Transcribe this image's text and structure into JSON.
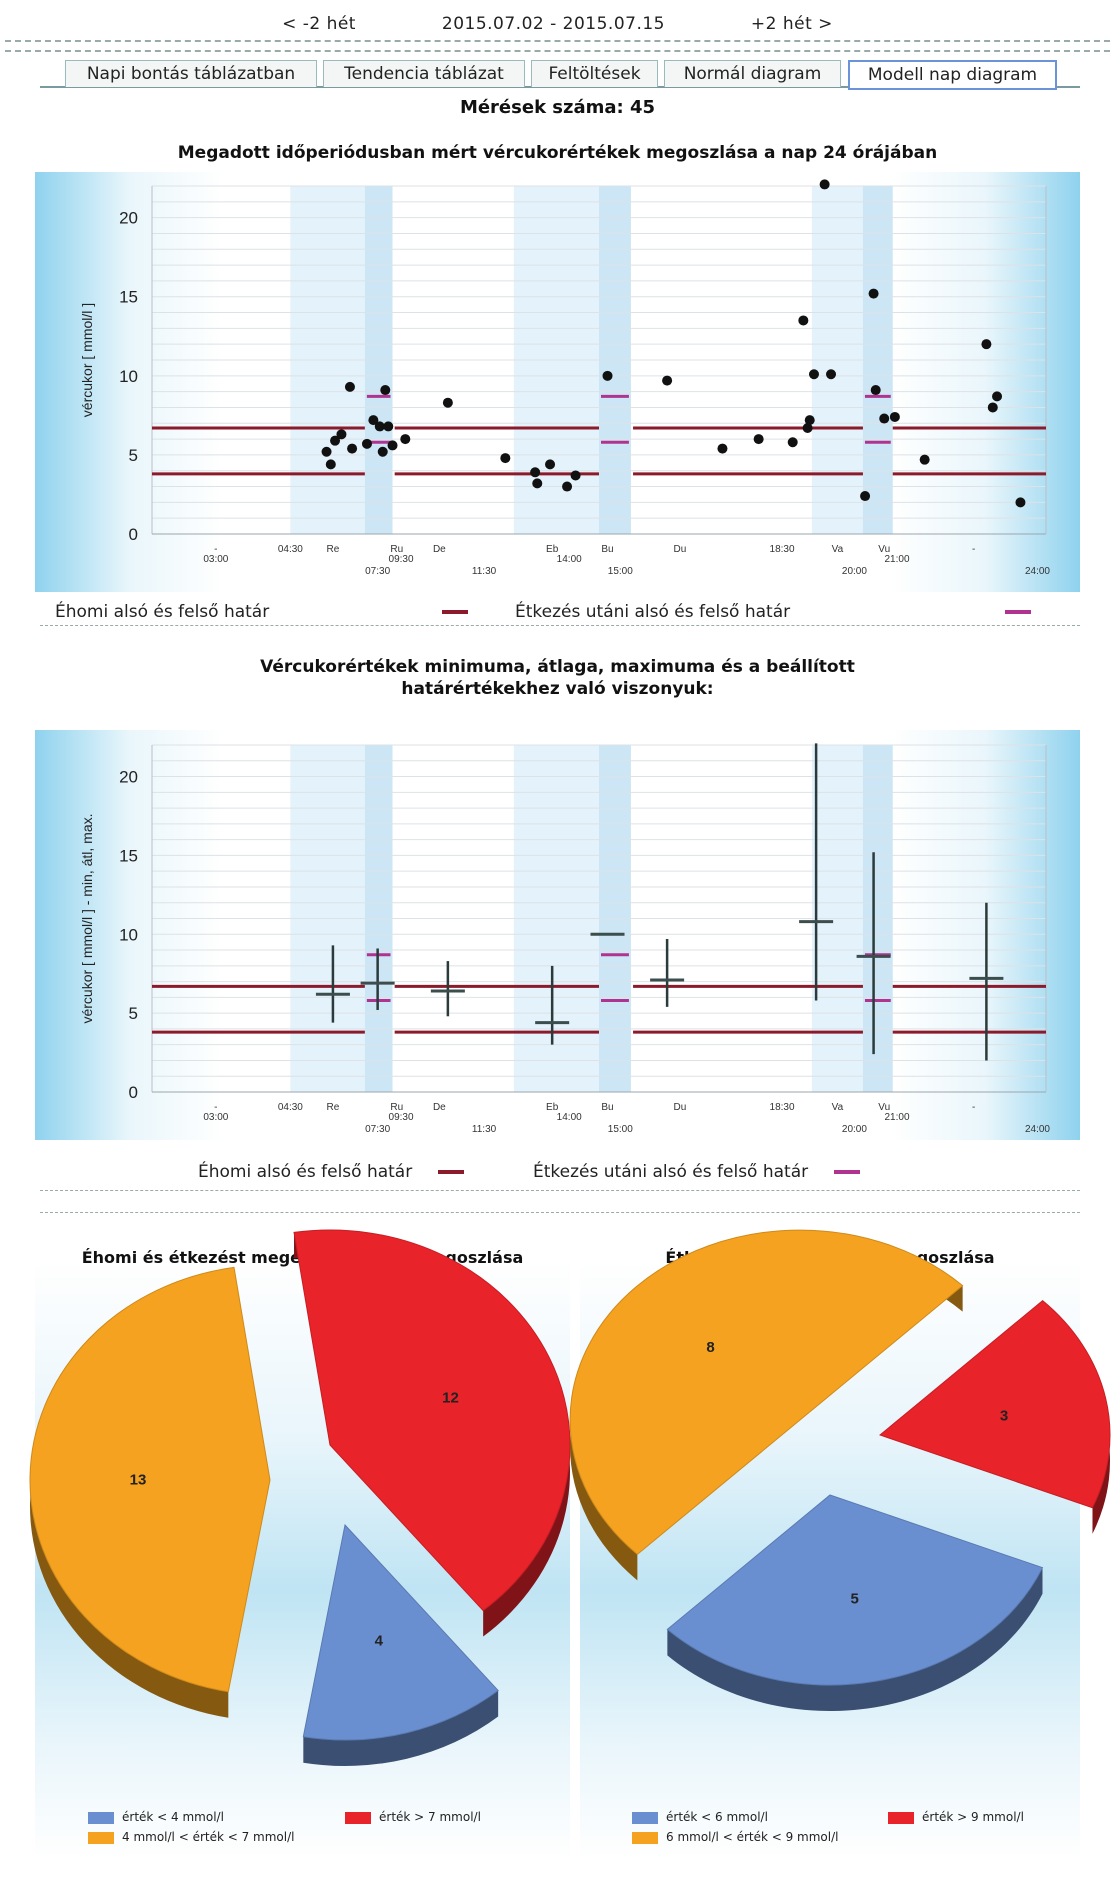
{
  "nav": {
    "prev": "< -2 hét",
    "range": "2015.07.02 - 2015.07.15",
    "next": "+2 hét >"
  },
  "tabs": [
    {
      "label": "Napi bontás táblázatban",
      "active": false
    },
    {
      "label": "Tendencia táblázat",
      "active": false
    },
    {
      "label": "Feltöltések",
      "active": false
    },
    {
      "label": "Normál diagram",
      "active": false
    },
    {
      "label": "Modell nap diagram",
      "active": true
    }
  ],
  "measurement_count": "Mérések száma: 45",
  "chart1_title": "Megadott időperiódusban mért vércukorértékek megoszlása a nap 24 órájában",
  "chart2_title": "Vércukorértékek minimuma, átlaga, maximuma és a beállított határértékekhez való viszonyuk:",
  "legend": {
    "fasting": "Éhomi alsó és felső határ",
    "postmeal": "Étkezés utáni alsó és felső határ"
  },
  "colors": {
    "fasting_line": "#8b1a2a",
    "postmeal_line": "#b0338f",
    "band_dark": "#cce6f6",
    "band_light": "#e3f2fb",
    "point": "#111111",
    "pie_blue": "#6a8fd0",
    "pie_red": "#e8232a",
    "pie_orange": "#f4a21f"
  },
  "pie_left": {
    "title": "Éhomi és étkezést megelőző értékek megoszlása",
    "legend": [
      "érték < 4 mmol/l",
      "érték > 7 mmol/l",
      "4 mmol/l < érték < 7 mmol/l"
    ]
  },
  "pie_right": {
    "title": "Étkezést követő értékek megoszlása",
    "legend": [
      "érték < 6 mmol/l",
      "érték > 9 mmol/l",
      "6 mmol/l < érték < 9 mmol/l"
    ]
  },
  "chart_data": [
    {
      "type": "scatter",
      "title": "Megadott időperiódusban mért vércukorértékek megoszlása a nap 24 órájában",
      "ylabel": "vércukor [ mmol/l ]",
      "ylim": [
        0,
        22
      ],
      "yticks": [
        0,
        5,
        10,
        15,
        20
      ],
      "xlim": [
        3,
        24
      ],
      "grid": true,
      "xticks_top": [
        {
          "x": 4.5,
          "label": "-"
        },
        {
          "x": 6.25,
          "label": "04:30"
        },
        {
          "x": 7.25,
          "label": "Re"
        },
        {
          "x": 8.75,
          "label": "Ru"
        },
        {
          "x": 9.75,
          "label": "De"
        },
        {
          "x": 12.4,
          "label": "Eb"
        },
        {
          "x": 13.7,
          "label": "Bu"
        },
        {
          "x": 15.4,
          "label": "Du"
        },
        {
          "x": 17.8,
          "label": "18:30"
        },
        {
          "x": 19.1,
          "label": "Va"
        },
        {
          "x": 20.2,
          "label": "Vu"
        },
        {
          "x": 22.3,
          "label": "-"
        }
      ],
      "xticks_bottom": [
        {
          "x": 4.5,
          "label": "03:00"
        },
        {
          "x": 8.3,
          "label": "07:30"
        },
        {
          "x": 8.85,
          "label": "09:30"
        },
        {
          "x": 10.8,
          "label": "11:30"
        },
        {
          "x": 12.8,
          "label": "14:00"
        },
        {
          "x": 14.0,
          "label": "15:00"
        },
        {
          "x": 19.5,
          "label": "20:00"
        },
        {
          "x": 20.5,
          "label": "21:00"
        },
        {
          "x": 23.8,
          "label": "24:00"
        }
      ],
      "shaded_periods": [
        {
          "from": 6.25,
          "to": 8.0,
          "shade": "light"
        },
        {
          "from": 8.0,
          "to": 8.65,
          "shade": "dark"
        },
        {
          "from": 11.5,
          "to": 13.5,
          "shade": "light"
        },
        {
          "from": 13.5,
          "to": 14.25,
          "shade": "dark"
        },
        {
          "from": 18.5,
          "to": 19.7,
          "shade": "light"
        },
        {
          "from": 19.7,
          "to": 20.4,
          "shade": "dark"
        }
      ],
      "limits": {
        "fasting": [
          {
            "from": 3.0,
            "to": 8.0,
            "low": 3.8,
            "high": 6.7
          },
          {
            "from": 8.7,
            "to": 13.5,
            "low": 3.8,
            "high": 6.7
          },
          {
            "from": 14.3,
            "to": 19.7,
            "low": 3.8,
            "high": 6.7
          },
          {
            "from": 20.4,
            "to": 24.0,
            "low": 3.8,
            "high": 6.7
          }
        ],
        "postmeal": [
          {
            "from": 8.0,
            "to": 8.65,
            "low": 5.8,
            "high": 8.7
          },
          {
            "from": 13.5,
            "to": 14.25,
            "low": 5.8,
            "high": 8.7
          },
          {
            "from": 19.7,
            "to": 20.4,
            "low": 5.8,
            "high": 8.7
          }
        ]
      },
      "points": [
        [
          7.1,
          5.2
        ],
        [
          7.2,
          4.4
        ],
        [
          7.3,
          5.9
        ],
        [
          7.45,
          6.3
        ],
        [
          7.65,
          9.3
        ],
        [
          7.7,
          5.4
        ],
        [
          8.05,
          5.7
        ],
        [
          8.2,
          7.2
        ],
        [
          8.35,
          6.8
        ],
        [
          8.42,
          5.2
        ],
        [
          8.48,
          9.1
        ],
        [
          8.55,
          6.8
        ],
        [
          8.65,
          5.6
        ],
        [
          8.95,
          6.0
        ],
        [
          9.95,
          8.3
        ],
        [
          11.3,
          4.8
        ],
        [
          12.0,
          3.9
        ],
        [
          12.05,
          3.2
        ],
        [
          12.35,
          4.4
        ],
        [
          12.75,
          3.0
        ],
        [
          12.95,
          3.7
        ],
        [
          13.7,
          10.0
        ],
        [
          15.1,
          9.7
        ],
        [
          16.4,
          5.4
        ],
        [
          17.25,
          6.0
        ],
        [
          18.05,
          5.8
        ],
        [
          18.4,
          6.7
        ],
        [
          18.45,
          7.2
        ],
        [
          18.55,
          10.1
        ],
        [
          18.95,
          10.1
        ],
        [
          19.75,
          2.4
        ],
        [
          19.95,
          15.2
        ],
        [
          20.0,
          9.1
        ],
        [
          20.2,
          7.3
        ],
        [
          20.45,
          7.4
        ],
        [
          21.15,
          4.7
        ],
        [
          22.6,
          12.0
        ],
        [
          22.75,
          8.0
        ],
        [
          22.85,
          8.7
        ],
        [
          23.4,
          2.0
        ],
        [
          18.3,
          13.5
        ],
        [
          18.8,
          22.1
        ]
      ]
    },
    {
      "type": "box",
      "title": "Vércukorértékek minimuma, átlaga, maximuma és a beállított határértékekhez való viszonyuk:",
      "ylabel": "vércukor [ mmol/l ] - min, átl, max.",
      "ylim": [
        0,
        22
      ],
      "yticks": [
        0,
        5,
        10,
        15,
        20
      ],
      "xlim": [
        3,
        24
      ],
      "series": [
        {
          "x": 7.25,
          "min": 4.4,
          "mean": 6.2,
          "max": 9.3
        },
        {
          "x": 8.3,
          "min": 5.2,
          "mean": 6.9,
          "max": 9.1
        },
        {
          "x": 9.95,
          "min": 4.8,
          "mean": 6.4,
          "max": 8.3
        },
        {
          "x": 12.4,
          "min": 3.0,
          "mean": 4.4,
          "max": 8.0
        },
        {
          "x": 13.7,
          "min": 10.0,
          "mean": 10.0,
          "max": 10.0
        },
        {
          "x": 15.1,
          "min": 5.4,
          "mean": 7.1,
          "max": 9.7
        },
        {
          "x": 18.6,
          "min": 5.8,
          "mean": 10.8,
          "max": 22.1
        },
        {
          "x": 19.95,
          "min": 2.4,
          "mean": 8.6,
          "max": 15.2
        },
        {
          "x": 22.6,
          "min": 2.0,
          "mean": 7.2,
          "max": 12.0
        }
      ]
    },
    {
      "type": "pie",
      "title": "Éhomi és étkezést megelőző értékek megoszlása",
      "slices": [
        {
          "label": "4 mmol/l < érték < 7 mmol/l",
          "value": 13,
          "color": "#f4a21f"
        },
        {
          "label": "érték > 7 mmol/l",
          "value": 12,
          "color": "#e8232a"
        },
        {
          "label": "érték < 4 mmol/l",
          "value": 4,
          "color": "#6a8fd0"
        }
      ]
    },
    {
      "type": "pie",
      "title": "Étkezést követő értékek megoszlása",
      "slices": [
        {
          "label": "6 mmol/l < érték < 9 mmol/l",
          "value": 8,
          "color": "#f4a21f"
        },
        {
          "label": "érték > 9 mmol/l",
          "value": 3,
          "color": "#e8232a"
        },
        {
          "label": "érték < 6 mmol/l",
          "value": 5,
          "color": "#6a8fd0"
        }
      ]
    }
  ]
}
